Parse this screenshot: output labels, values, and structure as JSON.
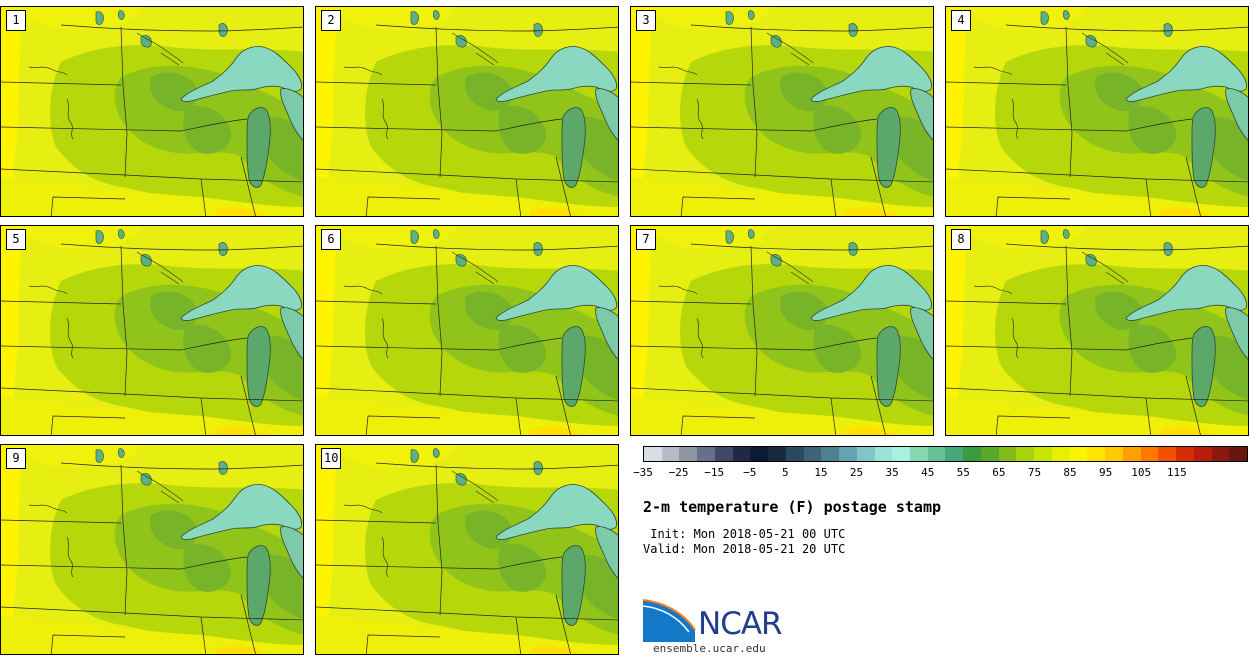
{
  "panels": [
    {
      "label": "1"
    },
    {
      "label": "2"
    },
    {
      "label": "3"
    },
    {
      "label": "4"
    },
    {
      "label": "5"
    },
    {
      "label": "6"
    },
    {
      "label": "7"
    },
    {
      "label": "8"
    },
    {
      "label": "9"
    },
    {
      "label": "10"
    }
  ],
  "colorbar": {
    "colors": [
      "#d9dde6",
      "#b5bcc8",
      "#8e96a6",
      "#66708a",
      "#3f4a66",
      "#1e2a44",
      "#0d1a33",
      "#172a40",
      "#2a4a5e",
      "#3d6478",
      "#4f8092",
      "#66a2b0",
      "#80c6c8",
      "#98e2d6",
      "#aaf0de",
      "#86d8b0",
      "#66c294",
      "#46a878",
      "#3c9a40",
      "#5aa828",
      "#80bc18",
      "#a8d40c",
      "#c8e604",
      "#e6f000",
      "#faf400",
      "#ffe400",
      "#ffc800",
      "#ffa000",
      "#ff7800",
      "#f05000",
      "#d82c06",
      "#b81c0c",
      "#8c1810",
      "#6a1410"
    ],
    "ticks": [
      "−35",
      "−25",
      "−15",
      "−5",
      "5",
      "15",
      "25",
      "35",
      "45",
      "55",
      "65",
      "75",
      "85",
      "95",
      "105",
      "115"
    ]
  },
  "title": "2-m temperature (F) postage stamp",
  "init": " Init: Mon 2018-05-21 00 UTC",
  "valid": "Valid: Mon 2018-05-21 20 UTC",
  "logo": {
    "text": "NCAR",
    "url": "ensemble.ucar.edu"
  }
}
